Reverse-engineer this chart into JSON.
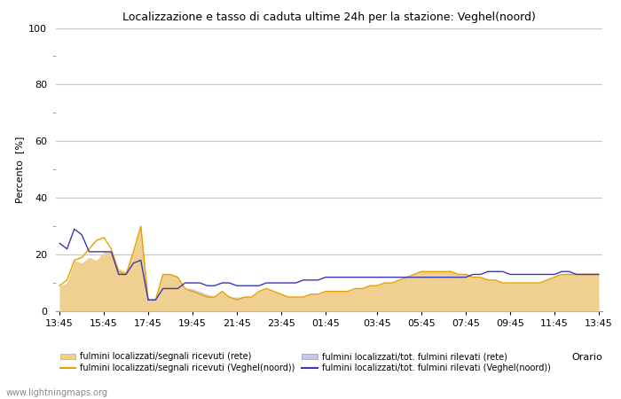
{
  "title": "Localizzazione e tasso di caduta ultime 24h per la stazione: Veghel(noord)",
  "xlabel": "Orario",
  "ylabel": "Percento  [%]",
  "ylim": [
    0,
    100
  ],
  "yticks_major": [
    0,
    20,
    40,
    60,
    80,
    100
  ],
  "yticks_minor": [
    10,
    30,
    50,
    70,
    90
  ],
  "x_display_labels": [
    "13:45",
    "15:45",
    "17:45",
    "19:45",
    "21:45",
    "23:45",
    "01:45",
    "03:45",
    "05:45",
    "07:45",
    "09:45",
    "11:45",
    "13:45"
  ],
  "background_color": "#ffffff",
  "plot_bg_color": "#ffffff",
  "grid_color": "#c8c8c8",
  "watermark": "www.lightningmaps.org",
  "color_rete_segnali_fill": "#f0d090",
  "color_veghel_segnali_line": "#e8a000",
  "color_rete_fulmini_fill": "#c8c8e8",
  "color_veghel_fulmini_line": "#3838b8",
  "legend_labels": [
    "fulmini localizzati/segnali ricevuti (rete)",
    "fulmini localizzati/segnali ricevuti (Veghel(noord))",
    "fulmini localizzati/tot. fulmini rilevati (rete)",
    "fulmini localizzati/tot. fulmini rilevati (Veghel(noord))"
  ],
  "series": {
    "rete_segnali": [
      9,
      10,
      18,
      17,
      19,
      18,
      21,
      21,
      15,
      14,
      21,
      30,
      4,
      4,
      13,
      13,
      12,
      8,
      7,
      6,
      5,
      5,
      7,
      5,
      4,
      5,
      5,
      7,
      8,
      7,
      6,
      5,
      5,
      5,
      6,
      6,
      7,
      7,
      7,
      7,
      8,
      8,
      9,
      9,
      10,
      10,
      11,
      12,
      13,
      14,
      14,
      14,
      14,
      14,
      13,
      13,
      12,
      12,
      11,
      11,
      10,
      10,
      10,
      10,
      10,
      10,
      11,
      12,
      13,
      13,
      13,
      13,
      13,
      13
    ],
    "veghel_segnali": [
      9,
      11,
      18,
      19,
      22,
      25,
      26,
      22,
      14,
      13,
      21,
      30,
      4,
      4,
      13,
      13,
      12,
      8,
      7,
      6,
      5,
      5,
      7,
      5,
      4,
      5,
      5,
      7,
      8,
      7,
      6,
      5,
      5,
      5,
      6,
      6,
      7,
      7,
      7,
      7,
      8,
      8,
      9,
      9,
      10,
      10,
      11,
      12,
      13,
      14,
      14,
      14,
      14,
      14,
      13,
      13,
      12,
      12,
      11,
      11,
      10,
      10,
      10,
      10,
      10,
      10,
      11,
      12,
      13,
      13,
      13,
      13,
      13,
      13
    ],
    "rete_fulmini": [
      8,
      8,
      8,
      8,
      8,
      8,
      8,
      8,
      8,
      8,
      8,
      8,
      4,
      4,
      8,
      8,
      8,
      8,
      8,
      7,
      6,
      5,
      5,
      5,
      5,
      5,
      5,
      5,
      5,
      5,
      5,
      5,
      5,
      5,
      5,
      5,
      5,
      5,
      5,
      5,
      5,
      5,
      5,
      5,
      5,
      5,
      5,
      5,
      5,
      5,
      5,
      5,
      5,
      5,
      5,
      5,
      5,
      5,
      5,
      5,
      5,
      5,
      5,
      5,
      5,
      5,
      5,
      5,
      5,
      5,
      5,
      5,
      5,
      5
    ],
    "veghel_fulmini": [
      24,
      22,
      29,
      27,
      21,
      21,
      21,
      21,
      13,
      13,
      17,
      18,
      4,
      4,
      8,
      8,
      8,
      10,
      10,
      10,
      9,
      9,
      10,
      10,
      9,
      9,
      9,
      9,
      10,
      10,
      10,
      10,
      10,
      11,
      11,
      11,
      12,
      12,
      12,
      12,
      12,
      12,
      12,
      12,
      12,
      12,
      12,
      12,
      12,
      12,
      12,
      12,
      12,
      12,
      12,
      12,
      13,
      13,
      14,
      14,
      14,
      13,
      13,
      13,
      13,
      13,
      13,
      13,
      14,
      14,
      13,
      13,
      13,
      13
    ]
  },
  "n_points": 74
}
